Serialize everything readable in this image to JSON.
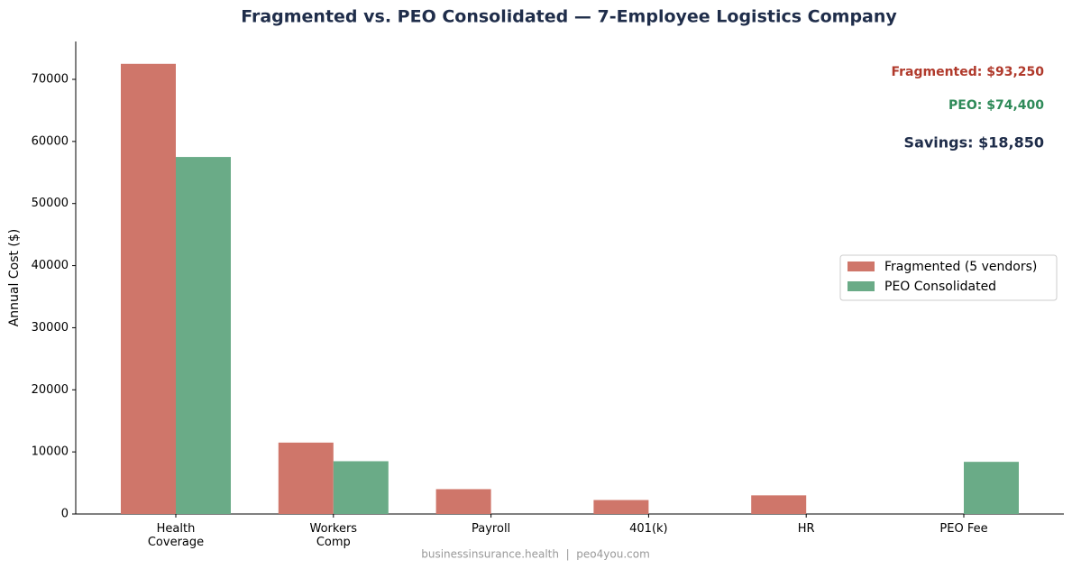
{
  "chart_data": {
    "type": "bar",
    "title": "Fragmented vs. PEO Consolidated — 7-Employee Logistics Company",
    "y_label": "Annual Cost ($)",
    "categories": [
      "Health\nCoverage",
      "Workers\nComp",
      "Payroll",
      "401(k)",
      "HR",
      "PEO Fee"
    ],
    "series": [
      {
        "name": "Fragmented (5 vendors)",
        "color": "#cf766a",
        "values": [
          72500,
          11500,
          4000,
          2250,
          3000,
          0
        ]
      },
      {
        "name": "PEO Consolidated",
        "color": "#6aab87",
        "values": [
          57500,
          8500,
          0,
          0,
          0,
          8400
        ]
      }
    ],
    "ylim": [
      0,
      76100
    ],
    "yticks": [
      0,
      10000,
      20000,
      30000,
      40000,
      50000,
      60000,
      70000
    ],
    "legend": "right",
    "annotations": [
      {
        "text": "Fragmented: $93,250",
        "color": "#b0392b"
      },
      {
        "text": "PEO: $74,400",
        "color": "#2e8a58"
      },
      {
        "text": "Savings: $18,850",
        "color": "#1f2d4a"
      }
    ],
    "footer": "businessinsurance.health  |  peo4you.com"
  }
}
